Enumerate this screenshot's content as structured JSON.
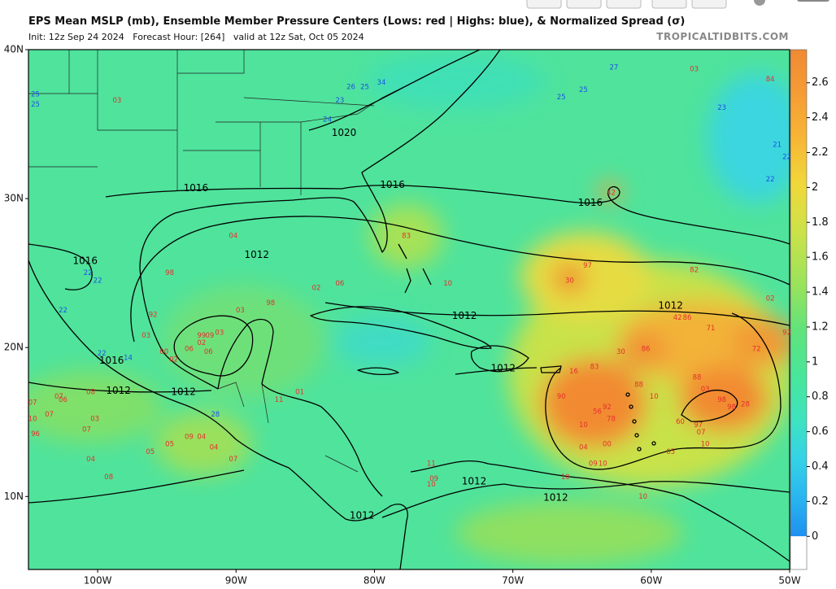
{
  "header": {
    "title": "EPS Mean MSLP (mb), Ensemble Member Pressure Centers (Lows: red | Highs: blue), & Normalized Spread (σ)",
    "subtitle": "Init: 12z Sep 24 2024   Forecast Hour: [264]   valid at 12z Sat, Oct 05 2024",
    "source": "TROPICALTIDBITS.COM"
  },
  "map": {
    "lon_extent": [
      -105,
      -50
    ],
    "lat_extent": [
      5.1,
      40
    ],
    "lat_ticks": [
      {
        "value": 40,
        "label": "40N"
      },
      {
        "value": 30,
        "label": "30N"
      },
      {
        "value": 20,
        "label": "20N"
      },
      {
        "value": 10,
        "label": "10N"
      }
    ],
    "lon_ticks": [
      {
        "value": -100,
        "label": "100W"
      },
      {
        "value": -90,
        "label": "90W"
      },
      {
        "value": -80,
        "label": "80W"
      },
      {
        "value": -70,
        "label": "70W"
      },
      {
        "value": -60,
        "label": "60W"
      },
      {
        "value": -50,
        "label": "50W"
      }
    ]
  },
  "colorbar": {
    "lim": [
      -0.19,
      2.79
    ],
    "ticks": [
      0,
      0.2,
      0.4,
      0.6,
      0.8,
      1,
      1.2,
      1.4,
      1.6,
      1.8,
      2,
      2.2,
      2.4,
      2.6
    ]
  },
  "isobar_labels": [
    {
      "label": "1020",
      "lat": 34.4,
      "lon": -82.2
    },
    {
      "label": "1016",
      "lat": 30.7,
      "lon": -92.9
    },
    {
      "label": "1016",
      "lat": 30.9,
      "lon": -78.7
    },
    {
      "label": "1016",
      "lat": 29.7,
      "lon": -64.4
    },
    {
      "label": "1016",
      "lat": 25.8,
      "lon": -100.9
    },
    {
      "label": "1016",
      "lat": 19.1,
      "lon": -99.0
    },
    {
      "label": "1012",
      "lat": 26.2,
      "lon": -88.5
    },
    {
      "label": "1012",
      "lat": 22.1,
      "lon": -73.5
    },
    {
      "label": "1012",
      "lat": 22.8,
      "lon": -58.6
    },
    {
      "label": "1012",
      "lat": 18.6,
      "lon": -70.7
    },
    {
      "label": "1012",
      "lat": 17.1,
      "lon": -98.5
    },
    {
      "label": "1012",
      "lat": 17.0,
      "lon": -93.8
    },
    {
      "label": "1012",
      "lat": 11.0,
      "lon": -72.8
    },
    {
      "label": "1012",
      "lat": 9.9,
      "lon": -66.9
    },
    {
      "label": "1012",
      "lat": 8.7,
      "lon": -80.9
    }
  ],
  "lows": [
    {
      "label": "03",
      "lat": 36.6,
      "lon": -98.6
    },
    {
      "label": "04",
      "lat": 27.5,
      "lon": -90.2
    },
    {
      "label": "98",
      "lat": 25.0,
      "lon": -94.8
    },
    {
      "label": "02",
      "lat": 24.0,
      "lon": -84.2
    },
    {
      "label": "06",
      "lat": 24.3,
      "lon": -82.5
    },
    {
      "label": "83",
      "lat": 27.5,
      "lon": -77.7
    },
    {
      "label": "10",
      "lat": 24.3,
      "lon": -74.7
    },
    {
      "label": "92",
      "lat": 22.2,
      "lon": -96.0
    },
    {
      "label": "03",
      "lat": 20.8,
      "lon": -96.5
    },
    {
      "label": "00",
      "lat": 19.7,
      "lon": -95.2
    },
    {
      "label": "02",
      "lat": 19.2,
      "lon": -94.5
    },
    {
      "label": "06",
      "lat": 19.9,
      "lon": -93.4
    },
    {
      "label": "99",
      "lat": 20.8,
      "lon": -92.5
    },
    {
      "label": "09",
      "lat": 20.8,
      "lon": -91.9
    },
    {
      "label": "02",
      "lat": 20.3,
      "lon": -92.5
    },
    {
      "label": "06",
      "lat": 19.7,
      "lon": -92.0
    },
    {
      "label": "03",
      "lat": 21.0,
      "lon": -91.2
    },
    {
      "label": "03",
      "lat": 22.5,
      "lon": -89.7
    },
    {
      "label": "98",
      "lat": 23.0,
      "lon": -87.5
    },
    {
      "label": "07",
      "lat": 16.3,
      "lon": -104.7
    },
    {
      "label": "07",
      "lat": 16.7,
      "lon": -102.8
    },
    {
      "label": "06",
      "lat": 16.5,
      "lon": -102.5
    },
    {
      "label": "08",
      "lat": 17.0,
      "lon": -100.5
    },
    {
      "label": "07",
      "lat": 15.5,
      "lon": -103.5
    },
    {
      "label": "10",
      "lat": 15.2,
      "lon": -104.7
    },
    {
      "label": "03",
      "lat": 15.2,
      "lon": -100.2
    },
    {
      "label": "07",
      "lat": 14.5,
      "lon": -100.8
    },
    {
      "label": "96",
      "lat": 14.2,
      "lon": -104.5
    },
    {
      "label": "05",
      "lat": 13.0,
      "lon": -96.2
    },
    {
      "label": "05",
      "lat": 13.5,
      "lon": -94.8
    },
    {
      "label": "09",
      "lat": 14.0,
      "lon": -93.4
    },
    {
      "label": "04",
      "lat": 14.0,
      "lon": -92.5
    },
    {
      "label": "04",
      "lat": 13.3,
      "lon": -91.6
    },
    {
      "label": "04",
      "lat": 12.5,
      "lon": -100.5
    },
    {
      "label": "08",
      "lat": 11.3,
      "lon": -99.2
    },
    {
      "label": "07",
      "lat": 12.5,
      "lon": -90.2
    },
    {
      "label": "11",
      "lat": 16.5,
      "lon": -86.9
    },
    {
      "label": "01",
      "lat": 17.0,
      "lon": -85.4
    },
    {
      "label": "11",
      "lat": 12.2,
      "lon": -75.9
    },
    {
      "label": "09",
      "lat": 11.2,
      "lon": -75.7
    },
    {
      "label": "10",
      "lat": 10.8,
      "lon": -75.9
    },
    {
      "label": "42",
      "lat": 30.4,
      "lon": -62.9
    },
    {
      "label": "03",
      "lat": 38.7,
      "lon": -56.9
    },
    {
      "label": "84",
      "lat": 38.0,
      "lon": -51.4
    },
    {
      "label": "97",
      "lat": 25.5,
      "lon": -64.6
    },
    {
      "label": "30",
      "lat": 24.5,
      "lon": -65.9
    },
    {
      "label": "82",
      "lat": 25.2,
      "lon": -56.9
    },
    {
      "label": "02",
      "lat": 23.3,
      "lon": -51.4
    },
    {
      "label": "42",
      "lat": 22.0,
      "lon": -58.1
    },
    {
      "label": "86",
      "lat": 22.0,
      "lon": -57.4
    },
    {
      "label": "71",
      "lat": 21.3,
      "lon": -55.7
    },
    {
      "label": "72",
      "lat": 19.9,
      "lon": -52.4
    },
    {
      "label": "92",
      "lat": 21.0,
      "lon": -50.2
    },
    {
      "label": "30",
      "lat": 19.7,
      "lon": -62.2
    },
    {
      "label": "86",
      "lat": 19.9,
      "lon": -60.4
    },
    {
      "label": "16",
      "lat": 18.4,
      "lon": -65.6
    },
    {
      "label": "83",
      "lat": 18.7,
      "lon": -64.1
    },
    {
      "label": "90",
      "lat": 16.7,
      "lon": -66.5
    },
    {
      "label": "88",
      "lat": 17.5,
      "lon": -60.9
    },
    {
      "label": "10",
      "lat": 16.7,
      "lon": -59.8
    },
    {
      "label": "88",
      "lat": 18.0,
      "lon": -56.7
    },
    {
      "label": "03",
      "lat": 17.2,
      "lon": -56.1
    },
    {
      "label": "98",
      "lat": 16.5,
      "lon": -54.9
    },
    {
      "label": "98",
      "lat": 16.0,
      "lon": -54.2
    },
    {
      "label": "28",
      "lat": 16.2,
      "lon": -53.2
    },
    {
      "label": "56",
      "lat": 15.7,
      "lon": -63.9
    },
    {
      "label": "92",
      "lat": 16.0,
      "lon": -63.2
    },
    {
      "label": "78",
      "lat": 15.2,
      "lon": -62.9
    },
    {
      "label": "10",
      "lat": 14.8,
      "lon": -64.9
    },
    {
      "label": "04",
      "lat": 13.3,
      "lon": -64.9
    },
    {
      "label": "00",
      "lat": 13.5,
      "lon": -63.2
    },
    {
      "label": "09",
      "lat": 12.2,
      "lon": -64.2
    },
    {
      "label": "10",
      "lat": 12.2,
      "lon": -63.5
    },
    {
      "label": "60",
      "lat": 15.0,
      "lon": -57.9
    },
    {
      "label": "97",
      "lat": 14.8,
      "lon": -56.6
    },
    {
      "label": "07",
      "lat": 14.3,
      "lon": -56.4
    },
    {
      "label": "05",
      "lat": 13.0,
      "lon": -58.6
    },
    {
      "label": "10",
      "lat": 13.5,
      "lon": -56.1
    },
    {
      "label": "10",
      "lat": 11.3,
      "lon": -66.2
    },
    {
      "label": "10",
      "lat": 10.0,
      "lon": -60.6
    }
  ],
  "highs": [
    {
      "label": "25",
      "lat": 37.0,
      "lon": -104.5
    },
    {
      "label": "25",
      "lat": 36.3,
      "lon": -104.5
    },
    {
      "label": "27",
      "lat": 38.8,
      "lon": -62.7
    },
    {
      "label": "25",
      "lat": 36.8,
      "lon": -66.5
    },
    {
      "label": "25",
      "lat": 37.3,
      "lon": -64.9
    },
    {
      "label": "23",
      "lat": 36.1,
      "lon": -54.9
    },
    {
      "label": "21",
      "lat": 33.6,
      "lon": -50.9
    },
    {
      "label": "22",
      "lat": 32.8,
      "lon": -50.2
    },
    {
      "label": "22",
      "lat": 31.3,
      "lon": -51.4
    },
    {
      "label": "26",
      "lat": 37.5,
      "lon": -81.7
    },
    {
      "label": "25",
      "lat": 37.5,
      "lon": -80.7
    },
    {
      "label": "34",
      "lat": 37.8,
      "lon": -79.5
    },
    {
      "label": "23",
      "lat": 36.6,
      "lon": -82.5
    },
    {
      "label": "24",
      "lat": 35.3,
      "lon": -83.4
    },
    {
      "label": "22",
      "lat": 25.0,
      "lon": -100.7
    },
    {
      "label": "22",
      "lat": 24.5,
      "lon": -100.0
    },
    {
      "label": "22",
      "lat": 22.5,
      "lon": -102.5
    },
    {
      "label": "22",
      "lat": 19.6,
      "lon": -99.7
    },
    {
      "label": "14",
      "lat": 19.3,
      "lon": -97.8
    },
    {
      "label": "28",
      "lat": 15.5,
      "lon": -91.5
    }
  ]
}
